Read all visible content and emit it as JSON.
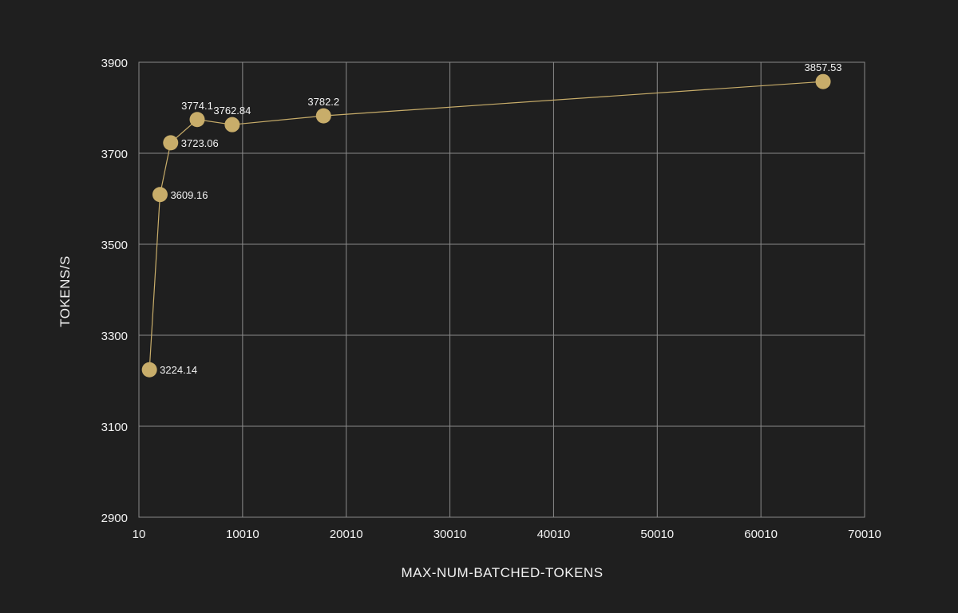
{
  "chart_data": {
    "type": "line",
    "title": "",
    "xlabel": "MAX-NUM-BATCHED-TOKENS",
    "ylabel": "TOKENS/S",
    "xlim": [
      10,
      70010
    ],
    "ylim": [
      2900,
      3900
    ],
    "x_ticks": [
      10,
      10010,
      20010,
      30010,
      40010,
      50010,
      60010,
      70010
    ],
    "y_ticks": [
      2900,
      3100,
      3300,
      3500,
      3700,
      3900
    ],
    "x_tick_labels": [
      "10",
      "10010",
      "20010",
      "30010",
      "40010",
      "50010",
      "60010",
      "70010"
    ],
    "y_tick_labels": [
      "2900",
      "3100",
      "3300",
      "3500",
      "3700",
      "3900"
    ],
    "grid": true,
    "series": [
      {
        "color": "#c8ad6a",
        "points": [
          {
            "x": 1024,
            "y": 3224.14,
            "label": "3224.14",
            "label_pos": "right"
          },
          {
            "x": 2048,
            "y": 3609.16,
            "label": "3609.16",
            "label_pos": "right"
          },
          {
            "x": 3072,
            "y": 3723.06,
            "label": "3723.06",
            "label_pos": "right"
          },
          {
            "x": 5632,
            "y": 3774.1,
            "label": "3774.1",
            "label_pos": "above"
          },
          {
            "x": 9010,
            "y": 3762.84,
            "label": "3762.84",
            "label_pos": "above"
          },
          {
            "x": 17820,
            "y": 3782.2,
            "label": "3782.2",
            "label_pos": "above"
          },
          {
            "x": 66010,
            "y": 3857.53,
            "label": "3857.53",
            "label_pos": "above"
          }
        ]
      }
    ]
  },
  "colors": {
    "background": "#1f1f1f",
    "grid": "#8a8a8a",
    "text": "#f2f2f2",
    "series": "#c8ad6a"
  }
}
